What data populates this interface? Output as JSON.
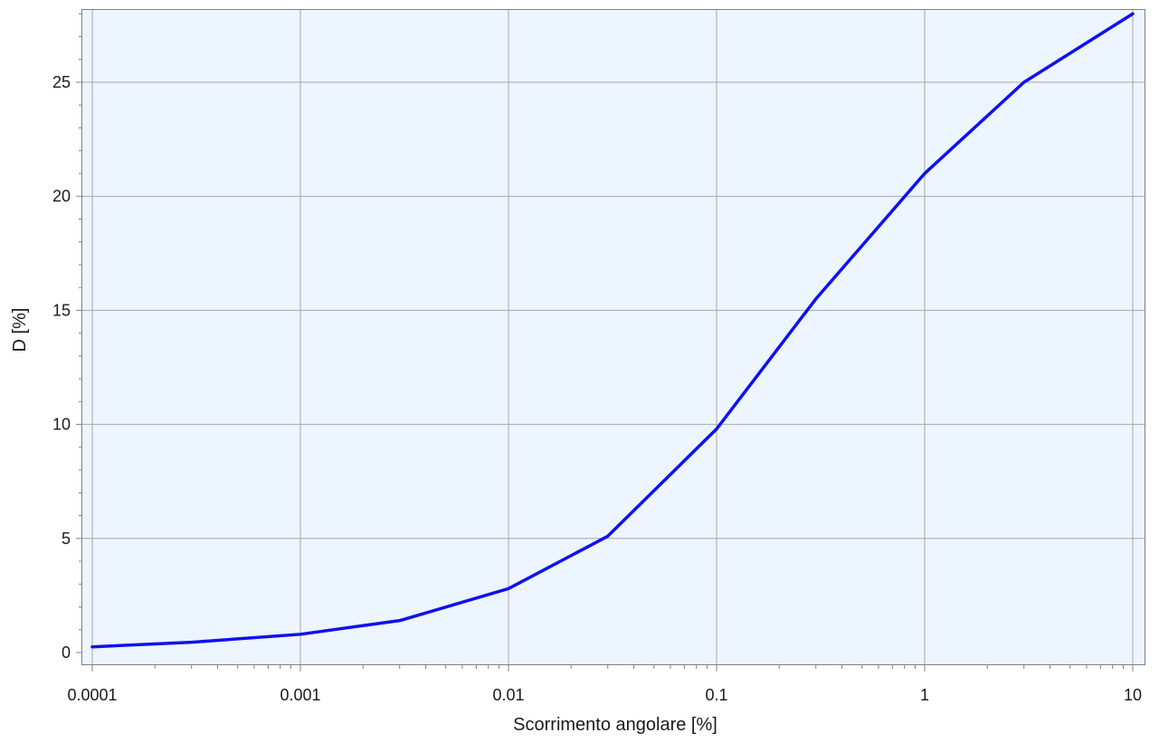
{
  "chart_data": {
    "type": "line",
    "title": "",
    "xlabel": "Scorrimento angolare [%]",
    "ylabel": "D [%]",
    "xscale": "log",
    "xlim": [
      0.0001,
      10
    ],
    "ylim": [
      0,
      28
    ],
    "x_ticks": [
      "0.0001",
      "0.001",
      "0.01",
      "0.1",
      "1",
      "10"
    ],
    "y_ticks": [
      "0",
      "5",
      "10",
      "15",
      "20",
      "25"
    ],
    "grid": true,
    "legend": "none",
    "colors": {
      "line": "#1010f0",
      "plot_background": "#edf5fe",
      "grid": "#a8a8a8",
      "axis": "#808080"
    },
    "series": [
      {
        "x": [
          0.0001,
          0.0003,
          0.001,
          0.003,
          0.01,
          0.03,
          0.1,
          0.3,
          1,
          3,
          10
        ],
        "y": [
          0.25,
          0.45,
          0.8,
          1.4,
          2.8,
          5.1,
          9.8,
          15.5,
          21.0,
          25.0,
          28.0
        ]
      }
    ]
  }
}
